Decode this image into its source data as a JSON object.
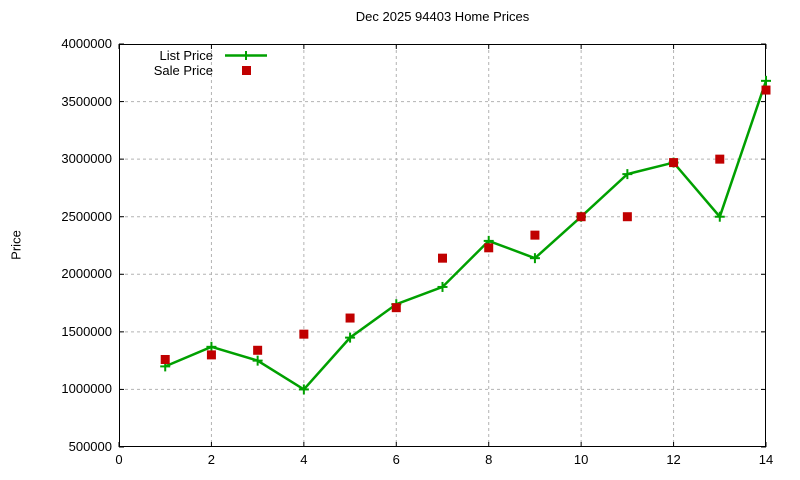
{
  "title": "Dec 2025 94403 Home Prices",
  "colors": {
    "background": "#ffffff",
    "axis": "#000000",
    "grid": "#b3b3b3",
    "list_price": "#00a000",
    "sale_price": "#c00000"
  },
  "chart_data": {
    "type": "line",
    "title": "Dec 2025 94403 Home Prices",
    "xlabel": "",
    "ylabel": "Price",
    "xlim": [
      0,
      14
    ],
    "ylim": [
      500000,
      4000000
    ],
    "xticks": [
      0,
      2,
      4,
      6,
      8,
      10,
      12,
      14
    ],
    "yticks": [
      500000,
      1000000,
      1500000,
      2000000,
      2500000,
      3000000,
      3500000,
      4000000
    ],
    "grid": true,
    "legend_position": "top-left-inside",
    "x": [
      1,
      2,
      3,
      4,
      5,
      6,
      7,
      8,
      9,
      10,
      11,
      12,
      13,
      14
    ],
    "series": [
      {
        "name": "List Price",
        "style": "line-with-plus-markers",
        "color": "#00a000",
        "values": [
          1200000,
          1370000,
          1250000,
          1000000,
          1450000,
          1740000,
          1890000,
          2290000,
          2140000,
          2500000,
          2870000,
          2970000,
          2500000,
          3680000
        ]
      },
      {
        "name": "Sale Price",
        "style": "square-markers",
        "color": "#c00000",
        "values": [
          1260000,
          1300000,
          1340000,
          1480000,
          1620000,
          1710000,
          2140000,
          2230000,
          2340000,
          2500000,
          2500000,
          2970000,
          3000000,
          3600000
        ]
      }
    ]
  }
}
